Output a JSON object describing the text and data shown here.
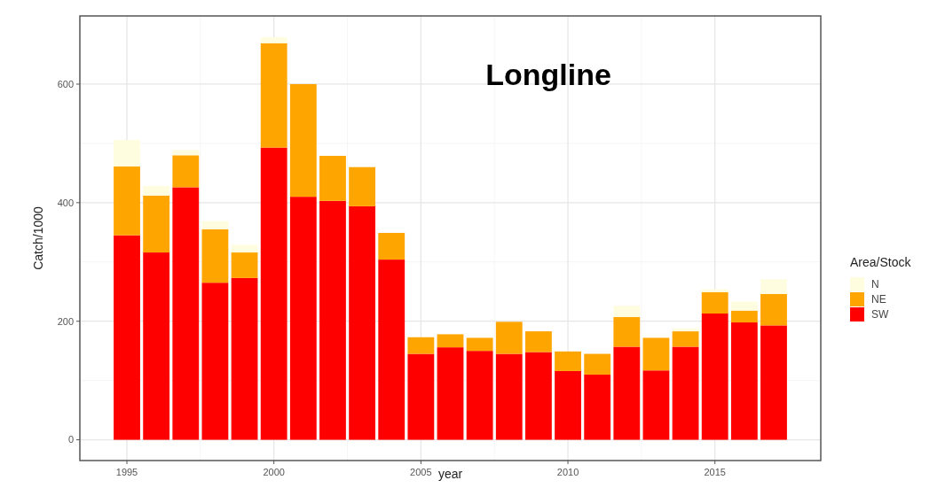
{
  "chart_data": {
    "type": "bar",
    "stacked": true,
    "title": "Longline",
    "xlabel": "year",
    "ylabel": "Catch/1000",
    "legend_title": "Area/Stock",
    "legend": "right",
    "grid": true,
    "x": [
      1995,
      1996,
      1997,
      1998,
      1999,
      2000,
      2001,
      2002,
      2003,
      2004,
      2005,
      2006,
      2007,
      2008,
      2009,
      2010,
      2011,
      2012,
      2013,
      2014,
      2015,
      2016,
      2017
    ],
    "xlim": [
      1993.4,
      2018.6
    ],
    "xticks": [
      1995,
      2000,
      2005,
      2010,
      2015
    ],
    "ylim": [
      -35,
      715
    ],
    "yticks": [
      0,
      200,
      400,
      600
    ],
    "series": [
      {
        "name": "SW",
        "color": "#ff0000",
        "values": [
          345,
          316,
          426,
          265,
          273,
          493,
          410,
          403,
          394,
          304,
          145,
          156,
          150,
          145,
          148,
          116,
          110,
          157,
          117,
          157,
          213,
          198,
          193
        ]
      },
      {
        "name": "NE",
        "color": "#ffa500",
        "values": [
          116,
          96,
          54,
          90,
          43,
          176,
          190,
          76,
          66,
          45,
          28,
          22,
          22,
          54,
          35,
          33,
          35,
          50,
          55,
          26,
          36,
          20,
          53
        ]
      },
      {
        "name": "N",
        "color": "#fffde0",
        "values": [
          45,
          16,
          9,
          14,
          13,
          10,
          0,
          0,
          0,
          0,
          0,
          0,
          0,
          0,
          0,
          0,
          0,
          19,
          0,
          5,
          5,
          15,
          25
        ]
      }
    ]
  }
}
